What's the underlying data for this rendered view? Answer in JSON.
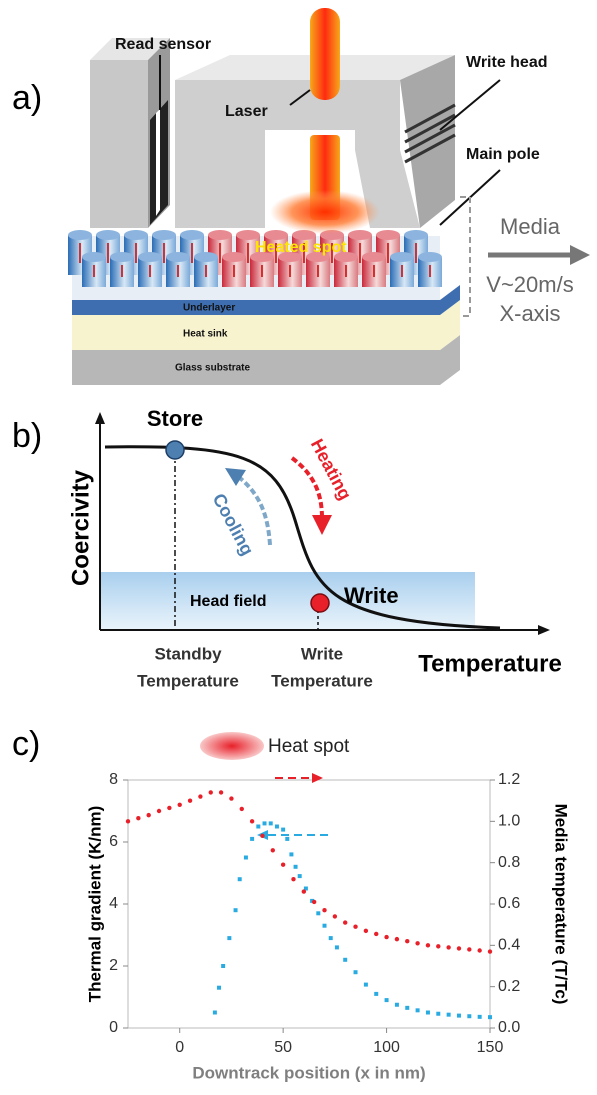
{
  "panel_a": {
    "label": "a)",
    "read_sensor": "Read sensor",
    "laser": "Laser",
    "write_head": "Write head",
    "main_pole": "Main pole",
    "heated_spot": "Heated spot",
    "media": "Media",
    "speed": "V~20m/s",
    "axis": "X-axis",
    "underlayer": "Underlayer",
    "heat_sink": "Heat sink",
    "glass_substrate": "Glass substrate"
  },
  "panel_b": {
    "label": "b)",
    "store": "Store",
    "y_axis": "Coercivity",
    "heating": "Heating",
    "cooling": "Cooling",
    "head_field": "Head field",
    "write": "Write",
    "standby": [
      "Standby",
      "Temperature"
    ],
    "write_temp": [
      "Write",
      "Temperature"
    ],
    "x_axis": "Temperature"
  },
  "panel_c": {
    "label": "c)",
    "heat_spot": "Heat spot"
  },
  "chart_data": {
    "type": "scatter",
    "xlabel": "Downtrack position (x in nm)",
    "ylabel": "Thermal gradient (K/nm)",
    "y2label": "Media temperature (T/Tc)",
    "xlim": [
      -25,
      150
    ],
    "xticks": [
      0,
      50,
      100,
      150
    ],
    "ylim": [
      0,
      8
    ],
    "yticks": [
      0,
      2,
      4,
      6,
      8
    ],
    "y2lim": [
      0,
      1.2
    ],
    "y2ticks": [
      {
        "value": 0,
        "label": "0.0"
      },
      0.2,
      0.4,
      0.6,
      0.8,
      {
        "value": 1,
        "label": "1.0"
      },
      1.2
    ],
    "series": [
      {
        "color": "#29abe2",
        "x": [
          17,
          19,
          21,
          24,
          27,
          29,
          32,
          35,
          38,
          41,
          44,
          47,
          50,
          52,
          54,
          56,
          58,
          61,
          64,
          67,
          70,
          73,
          76,
          80,
          85,
          90,
          95,
          100,
          105,
          110,
          115,
          120,
          125,
          130,
          135,
          140,
          145,
          150
        ],
        "values": [
          0.5,
          1.3,
          2.0,
          2.9,
          3.8,
          4.8,
          5.5,
          6.1,
          6.5,
          6.6,
          6.6,
          6.5,
          6.4,
          6.1,
          5.6,
          5.2,
          4.9,
          4.5,
          4.1,
          3.7,
          3.3,
          2.9,
          2.6,
          2.2,
          1.8,
          1.4,
          1.1,
          0.9,
          0.75,
          0.65,
          0.57,
          0.5,
          0.46,
          0.43,
          0.4,
          0.38,
          0.36,
          0.35
        ]
      },
      {
        "color": "#e8202a",
        "axis": "y2",
        "x": [
          -25,
          -20,
          -15,
          -10,
          -5,
          0,
          5,
          10,
          15,
          20,
          25,
          30,
          35,
          40,
          45,
          50,
          55,
          60,
          65,
          70,
          75,
          80,
          85,
          90,
          95,
          100,
          105,
          110,
          115,
          120,
          125,
          130,
          135,
          140,
          145,
          150
        ],
        "values": [
          1.0,
          1.015,
          1.03,
          1.05,
          1.065,
          1.08,
          1.1,
          1.12,
          1.14,
          1.14,
          1.11,
          1.06,
          1.0,
          0.93,
          0.86,
          0.79,
          0.72,
          0.66,
          0.61,
          0.57,
          0.54,
          0.51,
          0.49,
          0.47,
          0.455,
          0.44,
          0.43,
          0.42,
          0.41,
          0.4,
          0.395,
          0.39,
          0.385,
          0.38,
          0.375,
          0.37
        ]
      }
    ]
  }
}
